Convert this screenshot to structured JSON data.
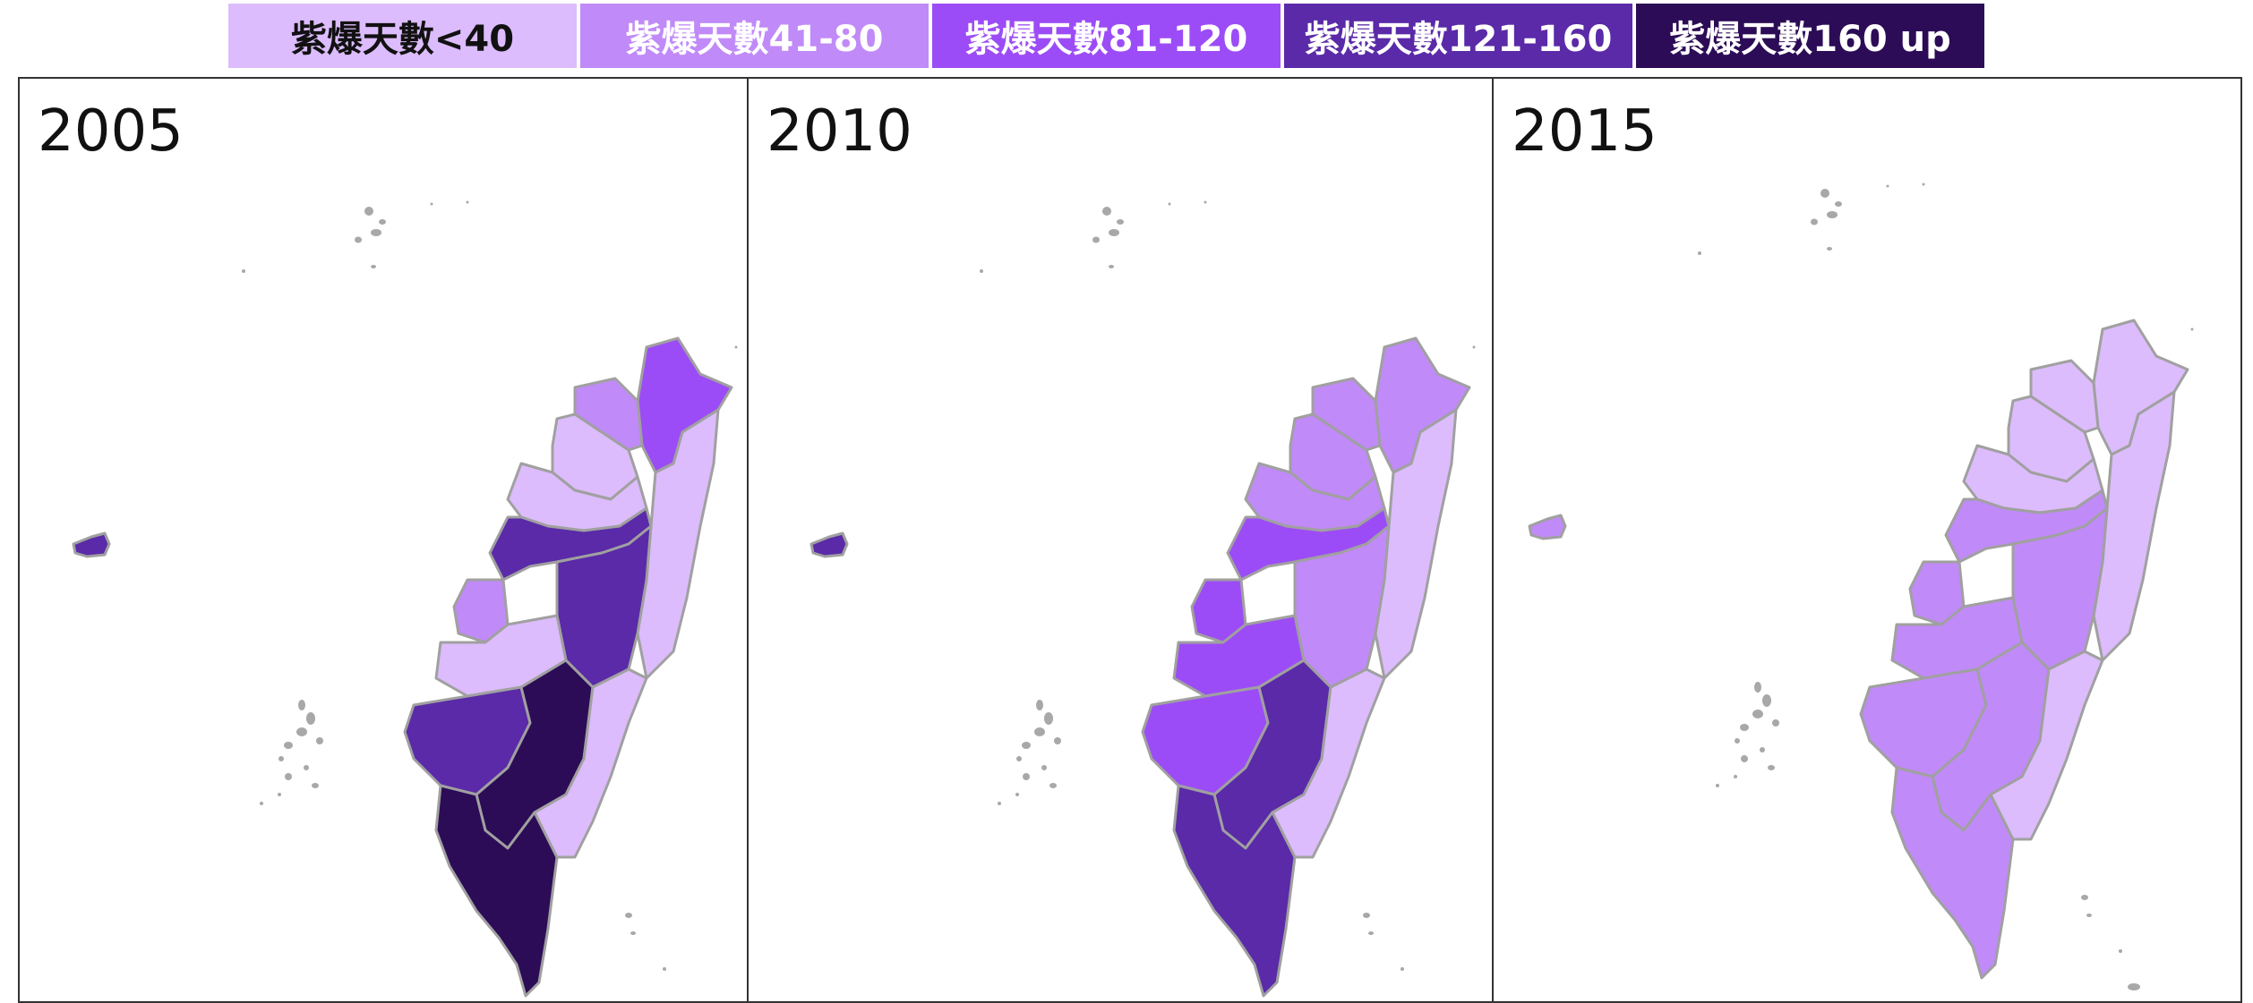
{
  "legend": [
    {
      "label": "紫爆天數<40",
      "color": "#dcbcfc",
      "text_color": "#111111"
    },
    {
      "label": "紫爆天數41-80",
      "color": "#c08af8",
      "text_color": "#ffffff"
    },
    {
      "label": "紫爆天數81-120",
      "color": "#9c4cf6",
      "text_color": "#ffffff"
    },
    {
      "label": "紫爆天數121-160",
      "color": "#5a2aa8",
      "text_color": "#ffffff"
    },
    {
      "label": "紫爆天數160 up",
      "color": "#2c0c56",
      "text_color": "#ffffff"
    }
  ],
  "panels": [
    {
      "year": "2005",
      "regions": {
        "north_east_block": "#9c4cf6",
        "north_west_block": "#c08af8",
        "north_mid_block": "#dcbcfc",
        "east_block": "#dcbcfc",
        "central_north_block": "#dcbcfc",
        "central_block": "#5a2aa8",
        "central_inner_block": "#5a2aa8",
        "central_small_block": "#c08af8",
        "central_low_block": "#dcbcfc",
        "south_west_block": "#5a2aa8",
        "south_mid_block": "#2c0c56",
        "south_tip_block": "#2c0c56",
        "south_east_block": "#dcbcfc",
        "penghu": "#5a2aa8"
      }
    },
    {
      "year": "2010",
      "regions": {
        "north_east_block": "#c08af8",
        "north_west_block": "#c08af8",
        "north_mid_block": "#c08af8",
        "east_block": "#dcbcfc",
        "central_north_block": "#c08af8",
        "central_block": "#9c4cf6",
        "central_inner_block": "#c08af8",
        "central_small_block": "#9c4cf6",
        "central_low_block": "#9c4cf6",
        "south_west_block": "#9c4cf6",
        "south_mid_block": "#5a2aa8",
        "south_tip_block": "#5a2aa8",
        "south_east_block": "#dcbcfc",
        "penghu": "#5a2aa8"
      }
    },
    {
      "year": "2015",
      "regions": {
        "north_east_block": "#dcbcfc",
        "north_west_block": "#dcbcfc",
        "north_mid_block": "#dcbcfc",
        "east_block": "#dcbcfc",
        "central_north_block": "#dcbcfc",
        "central_block": "#c08af8",
        "central_inner_block": "#c08af8",
        "central_small_block": "#c08af8",
        "central_low_block": "#c08af8",
        "south_west_block": "#c08af8",
        "south_mid_block": "#c08af8",
        "south_tip_block": "#c08af8",
        "south_east_block": "#dcbcfc",
        "penghu": "#c08af8"
      }
    }
  ],
  "colors": {
    "border": "#a0a0a0",
    "islands": "#a8a8a8"
  }
}
